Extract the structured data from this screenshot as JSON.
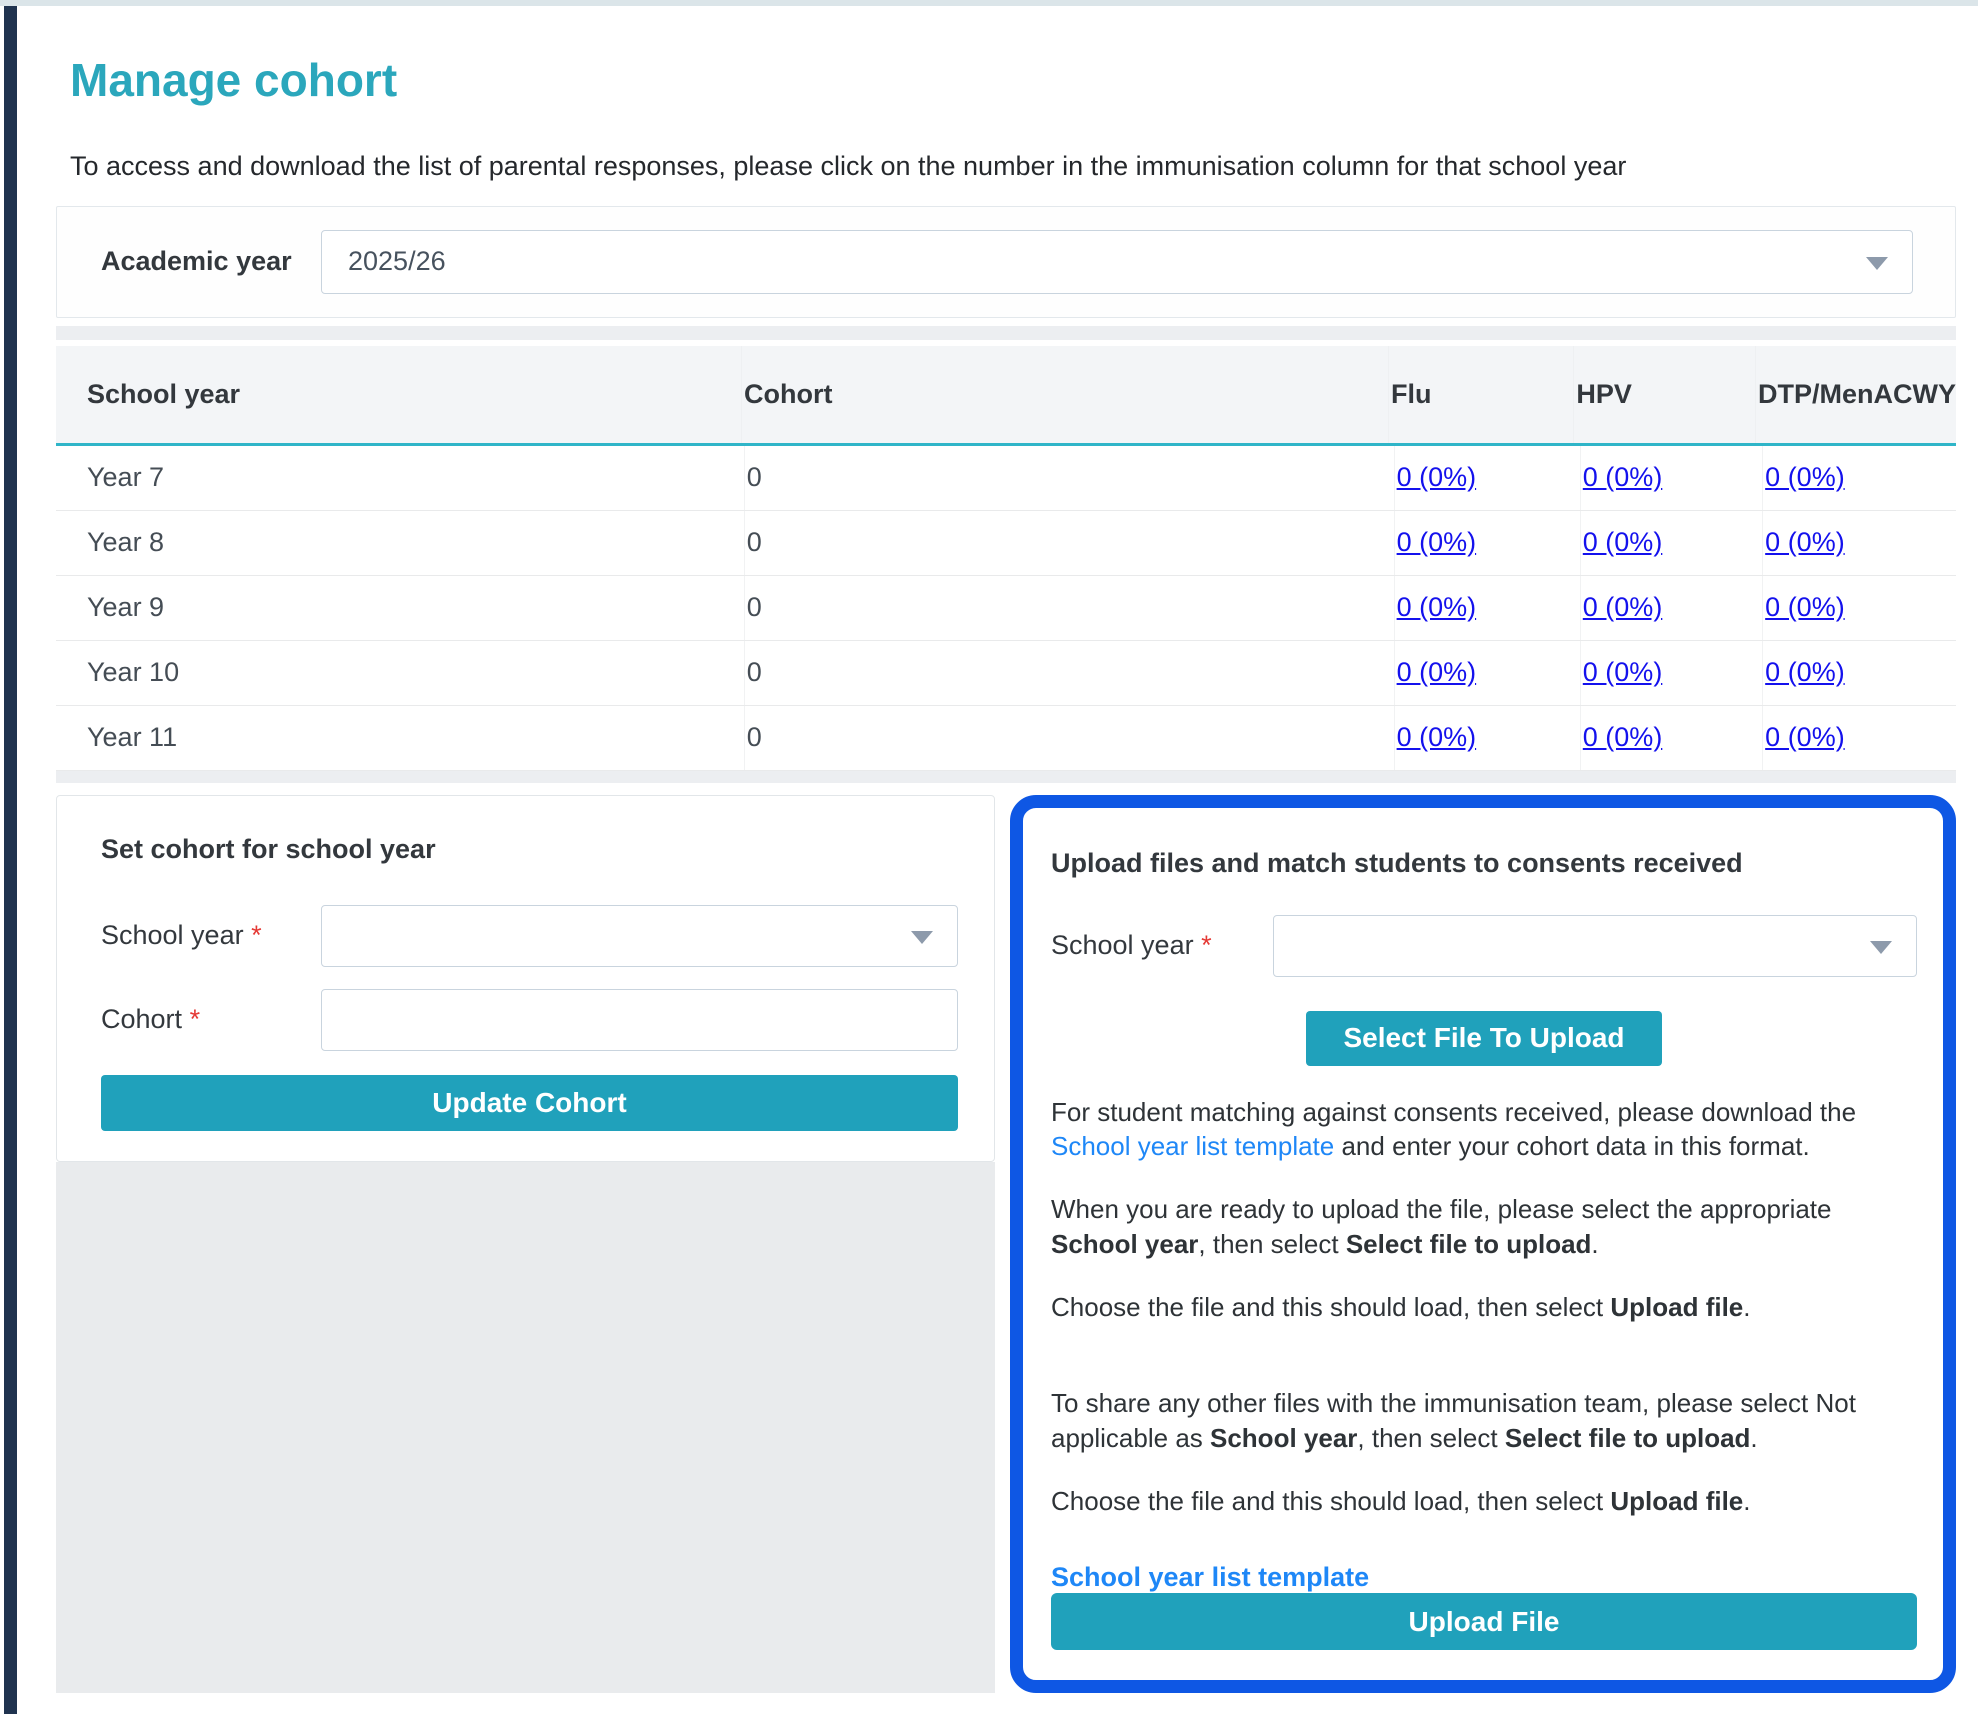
{
  "page": {
    "title": "Manage cohort",
    "subtitle": "To access and download the list of parental responses, please click on the number in the immunisation column for that school year"
  },
  "academic_year": {
    "label": "Academic year",
    "value": "2025/26"
  },
  "table": {
    "columns": [
      "School year",
      "Cohort",
      "Flu",
      "HPV",
      "DTP/MenACWY"
    ],
    "rows": [
      {
        "school_year": "Year 7",
        "cohort": "0",
        "flu": "0 (0%)",
        "hpv": "0 (0%)",
        "dtp": "0 (0%)"
      },
      {
        "school_year": "Year 8",
        "cohort": "0",
        "flu": "0 (0%)",
        "hpv": "0 (0%)",
        "dtp": "0 (0%)"
      },
      {
        "school_year": "Year 9",
        "cohort": "0",
        "flu": "0 (0%)",
        "hpv": "0 (0%)",
        "dtp": "0 (0%)"
      },
      {
        "school_year": "Year 10",
        "cohort": "0",
        "flu": "0 (0%)",
        "hpv": "0 (0%)",
        "dtp": "0 (0%)"
      },
      {
        "school_year": "Year 11",
        "cohort": "0",
        "flu": "0 (0%)",
        "hpv": "0 (0%)",
        "dtp": "0 (0%)"
      }
    ]
  },
  "set_cohort": {
    "title": "Set cohort for school year",
    "school_year_label": "School year",
    "cohort_label": "Cohort",
    "required_marker": "*",
    "school_year_value": "",
    "cohort_value": "",
    "update_button": "Update Cohort"
  },
  "upload": {
    "title": "Upload files and match students to consents received",
    "school_year_label": "School year",
    "required_marker": "*",
    "school_year_value": "",
    "select_file_button": "Select File To Upload",
    "p1": {
      "before": "For student matching against consents received, please download the ",
      "link": "School year list template",
      "after": " and enter your cohort data in this format."
    },
    "p2": {
      "before": "When you are ready to upload the file, please select the appropriate ",
      "bold1": "School year",
      "mid": ", then select ",
      "bold2": "Select file to upload",
      "end": "."
    },
    "p3": {
      "before": "Choose the file and this should load, then select ",
      "bold": "Upload file",
      "end": "."
    },
    "p4": {
      "before": "To share any other files with the immunisation team, please select Not applicable as ",
      "bold1": "School year",
      "mid": ", then select ",
      "bold2": "Select file to upload",
      "end": "."
    },
    "p5": {
      "before": "Choose the file and this should load, then select ",
      "bold": "Upload file",
      "end": "."
    },
    "template_link": "School year list template",
    "upload_button": "Upload File"
  },
  "colors": {
    "accent_teal": "#2ba7bc",
    "button_teal": "#20a1bb",
    "table_link_blue": "#1411ed",
    "template_link_blue": "#1e87f7",
    "highlight_border_blue": "#0e57e4",
    "header_underline_teal": "#2fb5c8",
    "sidebar_navy": "#20334f",
    "required_red": "#e53935",
    "gray_fill": "#e9ebed"
  }
}
